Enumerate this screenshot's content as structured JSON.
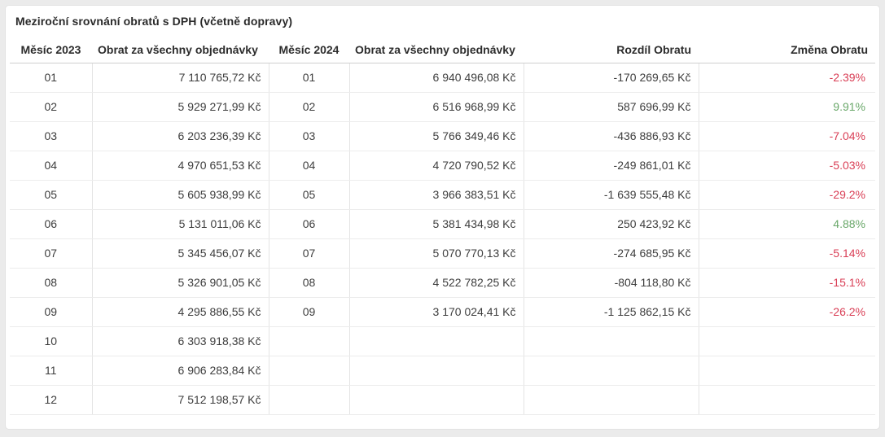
{
  "card": {
    "title": "Meziroční srovnání obratů s DPH (včetně dopravy)"
  },
  "colors": {
    "negative": "#d93e55",
    "positive": "#6aa86a",
    "page_background": "#ebebeb",
    "card_background": "#ffffff"
  },
  "table": {
    "headers": [
      "Měsíc 2023",
      "Obrat za všechny objednávky",
      "Měsíc 2024",
      "Obrat za všechny objednávky",
      "Rozdíl Obratu",
      "Změna Obratu"
    ],
    "rows": [
      {
        "m2023": "01",
        "rev2023": "7 110 765,72 Kč",
        "m2024": "01",
        "rev2024": "6 940 496,08 Kč",
        "diff": "-170 269,65 Kč",
        "change": "-2.39%"
      },
      {
        "m2023": "02",
        "rev2023": "5 929 271,99 Kč",
        "m2024": "02",
        "rev2024": "6 516 968,99 Kč",
        "diff": "587 696,99 Kč",
        "change": "9.91%"
      },
      {
        "m2023": "03",
        "rev2023": "6 203 236,39 Kč",
        "m2024": "03",
        "rev2024": "5 766 349,46 Kč",
        "diff": "-436 886,93 Kč",
        "change": "-7.04%"
      },
      {
        "m2023": "04",
        "rev2023": "4 970 651,53 Kč",
        "m2024": "04",
        "rev2024": "4 720 790,52 Kč",
        "diff": "-249 861,01 Kč",
        "change": "-5.03%"
      },
      {
        "m2023": "05",
        "rev2023": "5 605 938,99 Kč",
        "m2024": "05",
        "rev2024": "3 966 383,51 Kč",
        "diff": "-1 639 555,48 Kč",
        "change": "-29.2%"
      },
      {
        "m2023": "06",
        "rev2023": "5 131 011,06 Kč",
        "m2024": "06",
        "rev2024": "5 381 434,98 Kč",
        "diff": "250 423,92 Kč",
        "change": "4.88%"
      },
      {
        "m2023": "07",
        "rev2023": "5 345 456,07 Kč",
        "m2024": "07",
        "rev2024": "5 070 770,13 Kč",
        "diff": "-274 685,95 Kč",
        "change": "-5.14%"
      },
      {
        "m2023": "08",
        "rev2023": "5 326 901,05 Kč",
        "m2024": "08",
        "rev2024": "4 522 782,25 Kč",
        "diff": "-804 118,80 Kč",
        "change": "-15.1%"
      },
      {
        "m2023": "09",
        "rev2023": "4 295 886,55 Kč",
        "m2024": "09",
        "rev2024": "3 170 024,41 Kč",
        "diff": "-1 125 862,15 Kč",
        "change": "-26.2%"
      },
      {
        "m2023": "10",
        "rev2023": "6 303 918,38 Kč",
        "m2024": "",
        "rev2024": "",
        "diff": "",
        "change": ""
      },
      {
        "m2023": "11",
        "rev2023": "6 906 283,84 Kč",
        "m2024": "",
        "rev2024": "",
        "diff": "",
        "change": ""
      },
      {
        "m2023": "12",
        "rev2023": "7 512 198,57 Kč",
        "m2024": "",
        "rev2024": "",
        "diff": "",
        "change": ""
      }
    ]
  }
}
